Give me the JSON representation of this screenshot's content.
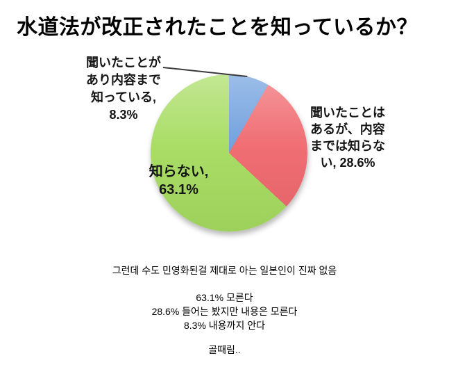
{
  "title": "水道法が改正されたことを知っているか？",
  "chart_data": {
    "type": "pie",
    "title": "水道法が改正されたことを知っているか？",
    "direction": "clockwise",
    "start_angle_deg": 0,
    "legend": "none",
    "slices": [
      {
        "label": "聞いたことがあり内容まで知っている",
        "value": 8.3,
        "color": "#6d9edd"
      },
      {
        "label": "聞いたことはあるが、内容までは知らない",
        "value": 28.6,
        "color": "#ef686e"
      },
      {
        "label": "知らない",
        "value": 63.1,
        "color": "#a6dc60"
      }
    ]
  },
  "labels": {
    "heard_and_know": "聞いたことが\nあり内容まで\n知っている,\n8.3%",
    "dont_know": "知らない,\n63.1%",
    "heard_not_know": "聞いたことは\nあるが、内容\nまでは知らな\nい, 28.6%"
  },
  "commentary": {
    "line1": "그런데 수도 민영화된걸 제대로 아는 일본인이 진짜 없음",
    "line2": "63.1% 모른다",
    "line3": "28.6% 들어는 봤지만 내용은 모른다",
    "line4": "8.3% 내용까지 안다",
    "line5": "골때림.."
  },
  "colors": {
    "background": "#ffffff",
    "title_text": "#000000",
    "label_text": "#141414",
    "slice_blue": "#6d9edd",
    "slice_red": "#ef686e",
    "slice_green": "#a6dc60"
  }
}
